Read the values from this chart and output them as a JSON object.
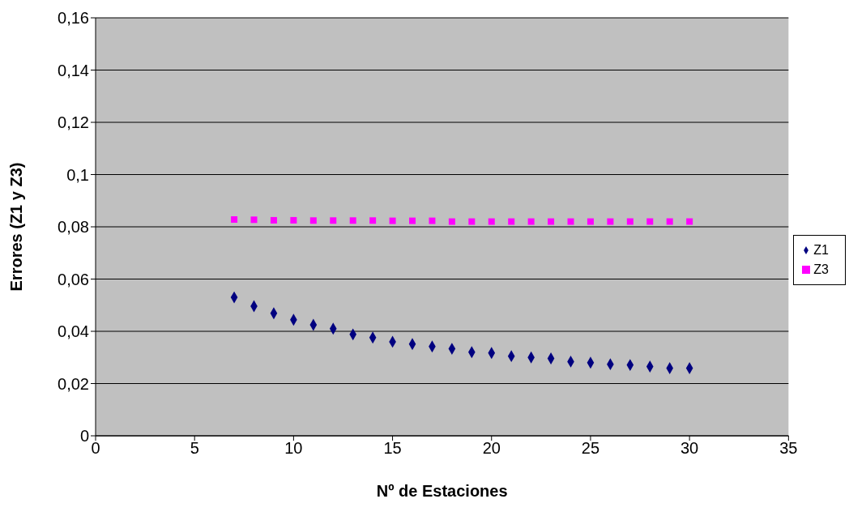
{
  "chart_data": {
    "type": "scatter",
    "xlabel": "Nº de Estaciones",
    "ylabel": "Errores (Z1 y Z3)",
    "xlim": [
      0,
      35
    ],
    "xticks": [
      0,
      5,
      10,
      15,
      20,
      25,
      30,
      35
    ],
    "ylim": [
      0,
      0.16
    ],
    "yticks": [
      0,
      {
        "value": 0.02,
        "label": "0,02"
      },
      {
        "value": 0.04,
        "label": "0,04"
      },
      {
        "value": 0.06,
        "label": "0,06"
      },
      {
        "value": 0.08,
        "label": "0,08"
      },
      {
        "value": 0.1,
        "label": "0,1"
      },
      {
        "value": 0.12,
        "label": "0,12"
      },
      {
        "value": 0.14,
        "label": "0,14"
      },
      {
        "value": 0.16,
        "label": "0,16"
      }
    ],
    "grid": "y",
    "legend": "right",
    "x": [
      7,
      8,
      9,
      10,
      11,
      12,
      13,
      14,
      15,
      16,
      17,
      18,
      19,
      20,
      21,
      22,
      23,
      24,
      25,
      26,
      27,
      28,
      29,
      30
    ],
    "series": [
      {
        "name": "Z1",
        "color": "#000080",
        "marker": "diamond",
        "values": [
          0.053,
          0.0496,
          0.0469,
          0.0444,
          0.0425,
          0.041,
          0.0388,
          0.0376,
          0.036,
          0.0351,
          0.0342,
          0.0333,
          0.032,
          0.0317,
          0.0305,
          0.03,
          0.0296,
          0.0284,
          0.028,
          0.0274,
          0.0271,
          0.0265,
          0.0259,
          0.0259
        ]
      },
      {
        "name": "Z3",
        "color": "#ff00ff",
        "marker": "square",
        "values": [
          0.0828,
          0.0827,
          0.0825,
          0.0825,
          0.0824,
          0.0824,
          0.0824,
          0.0824,
          0.0823,
          0.0823,
          0.0823,
          0.082,
          0.082,
          0.082,
          0.082,
          0.082,
          0.082,
          0.082,
          0.082,
          0.082,
          0.082,
          0.082,
          0.082,
          0.082
        ]
      }
    ]
  }
}
